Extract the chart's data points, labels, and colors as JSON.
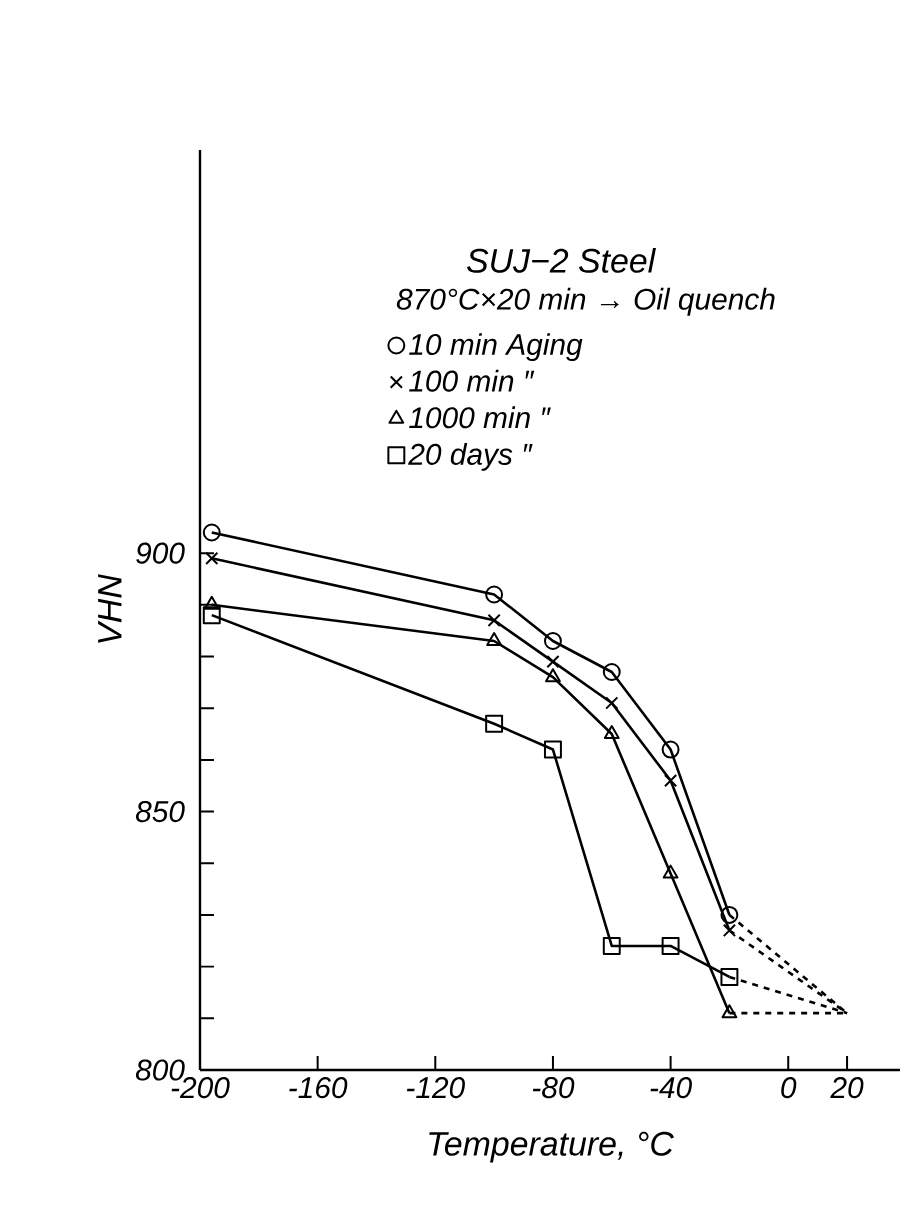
{
  "chart_data": {
    "type": "line",
    "title": "SUJ−2 Steel",
    "subtitle": "870°C×20 min → Oil quench",
    "xlabel": "Temperature, °C",
    "ylabel": "VHN",
    "xlim": [
      -200,
      38
    ],
    "ylim": [
      800,
      978
    ],
    "xticks": [
      -200,
      -160,
      -120,
      -80,
      -40,
      0,
      20
    ],
    "yticks": [
      800,
      {
        "value": 810,
        "label": null
      },
      {
        "value": 820,
        "label": null
      },
      {
        "value": 830,
        "label": null
      },
      {
        "value": 840,
        "label": null
      },
      850,
      {
        "value": 860,
        "label": null
      },
      {
        "value": 870,
        "label": null
      },
      {
        "value": 880,
        "label": null
      },
      {
        "value": 890,
        "label": null
      },
      900
    ],
    "legend": "top",
    "series": [
      {
        "name": "10 min  Aging",
        "color": "#000000",
        "marker": "circle",
        "line_style": "solid",
        "x": [
          -196,
          -100,
          -80,
          -60,
          -40,
          -20
        ],
        "values": [
          904,
          892,
          883,
          877,
          862,
          830
        ]
      },
      {
        "name": "100 min      ″",
        "color": "#000000",
        "marker": "cross",
        "line_style": "solid",
        "x": [
          -196,
          -100,
          -80,
          -60,
          -40,
          -20
        ],
        "values": [
          899,
          887,
          879,
          871,
          856,
          827
        ]
      },
      {
        "name": "1000 min    ″",
        "color": "#000000",
        "marker": "triangle",
        "line_style": "solid",
        "x": [
          -196,
          -100,
          -80,
          -60,
          -40,
          -20
        ],
        "values": [
          890,
          883,
          876,
          865,
          838,
          811
        ]
      },
      {
        "name": "20 days      ″",
        "color": "#000000",
        "marker": "square",
        "line_style": "solid",
        "x": [
          -196,
          -100,
          -80,
          -60,
          -40,
          -20
        ],
        "values": [
          888,
          867,
          862,
          824,
          824,
          818
        ]
      },
      {
        "color": "#000000",
        "marker": "none",
        "line_style": "dashed",
        "x": [
          -20,
          20
        ],
        "values": [
          830,
          811
        ]
      },
      {
        "color": "#000000",
        "marker": "none",
        "line_style": "dashed",
        "x": [
          -20,
          20
        ],
        "values": [
          827,
          811
        ]
      },
      {
        "color": "#000000",
        "marker": "none",
        "line_style": "dashed",
        "x": [
          -20,
          20
        ],
        "values": [
          811,
          811
        ]
      },
      {
        "color": "#000000",
        "marker": "none",
        "line_style": "dashed",
        "x": [
          -20,
          20
        ],
        "values": [
          818,
          811
        ]
      }
    ]
  }
}
